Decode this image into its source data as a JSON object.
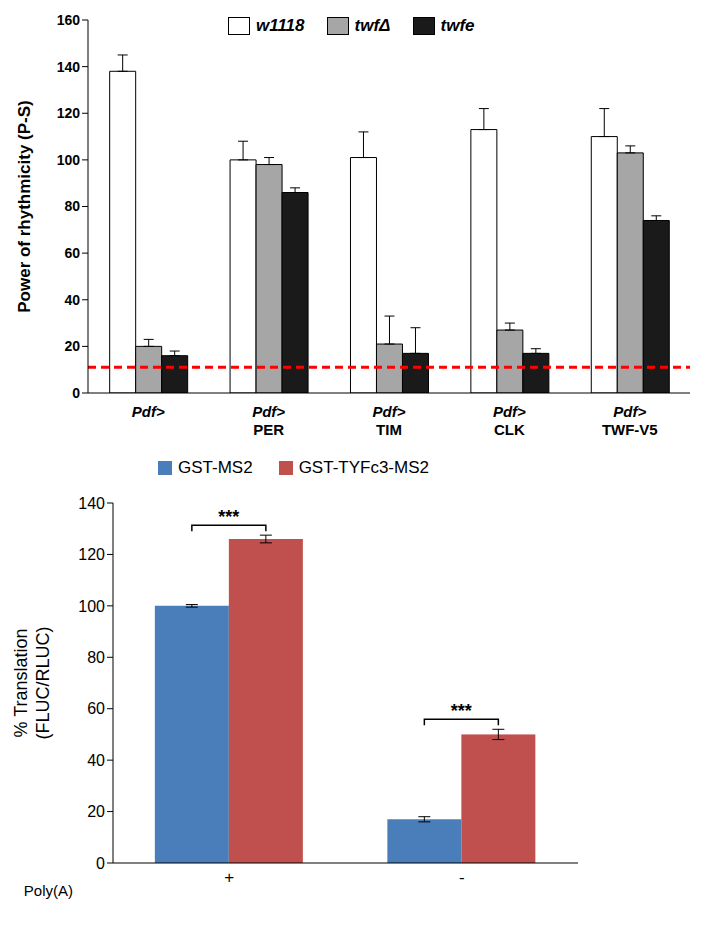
{
  "chart_data": [
    {
      "type": "bar",
      "categories": [
        "Pdf>",
        "Pdf> PER",
        "Pdf> TIM",
        "Pdf> CLK",
        "Pdf> TWF-V5"
      ],
      "series": [
        {
          "name": "w1118",
          "color": "#ffffff",
          "values": [
            138,
            100,
            101,
            113,
            110
          ],
          "errors": [
            7,
            8,
            11,
            9,
            12
          ]
        },
        {
          "name": "twfΔ",
          "color": "#a6a6a6",
          "values": [
            20,
            98,
            21,
            27,
            103
          ],
          "errors": [
            3,
            3,
            12,
            3,
            3
          ]
        },
        {
          "name": "twfe",
          "color": "#1a1a1a",
          "values": [
            16,
            86,
            17,
            17,
            74
          ],
          "errors": [
            2,
            2,
            11,
            2,
            2
          ]
        }
      ],
      "ylabel": "Power of rhythmicity (P-S)",
      "ylim": [
        0,
        160
      ],
      "yticks": [
        0,
        20,
        40,
        60,
        80,
        100,
        120,
        140,
        160
      ],
      "reference_line": 11
    },
    {
      "type": "bar",
      "categories": [
        "+",
        "-"
      ],
      "series": [
        {
          "name": "GST-MS2",
          "color": "#4a7ebb",
          "values": [
            100,
            17
          ],
          "errors": [
            0.5,
            1
          ]
        },
        {
          "name": "GST-TYFc3-MS2",
          "color": "#c0504d",
          "values": [
            126,
            50
          ],
          "errors": [
            1.5,
            2
          ]
        }
      ],
      "xlabel": "Poly(A)",
      "ylabel": "% Translation (FLUC/RLUC)",
      "ylim": [
        0,
        140
      ],
      "yticks": [
        0,
        20,
        40,
        60,
        80,
        100,
        120,
        140
      ],
      "annotations": [
        "***",
        "***"
      ]
    }
  ]
}
